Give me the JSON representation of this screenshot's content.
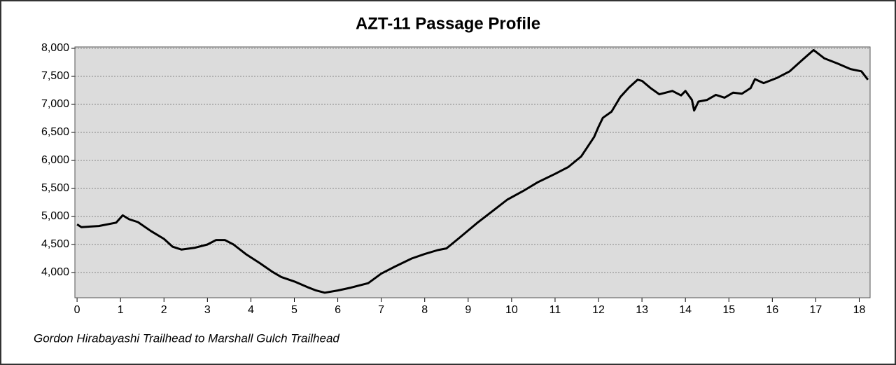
{
  "chart_data": {
    "type": "line",
    "title": "AZT-11 Passage Profile",
    "subtitle": "Gordon Hirabayashi Trailhead to Marshall Gulch Trailhead",
    "x": [
      0,
      0.1,
      0.5,
      0.9,
      1.05,
      1.2,
      1.4,
      1.7,
      2,
      2.2,
      2.4,
      2.7,
      3,
      3.2,
      3.4,
      3.6,
      3.9,
      4.2,
      4.5,
      4.7,
      5,
      5.3,
      5.5,
      5.7,
      6,
      6.3,
      6.7,
      7,
      7.3,
      7.7,
      8,
      8.3,
      8.5,
      8.8,
      9.2,
      9.6,
      9.9,
      10.3,
      10.6,
      11,
      11.3,
      11.6,
      11.9,
      12,
      12.1,
      12.3,
      12.5,
      12.7,
      12.9,
      13,
      13.2,
      13.4,
      13.7,
      13.9,
      14,
      14.15,
      14.2,
      14.3,
      14.5,
      14.7,
      14.9,
      15.1,
      15.3,
      15.5,
      15.6,
      15.8,
      16.1,
      16.4,
      16.7,
      16.95,
      17.2,
      17.5,
      17.8,
      18.05,
      18.2
    ],
    "series": [
      {
        "color": "#000000",
        "values": [
          4860,
          4810,
          4830,
          4890,
          5020,
          4950,
          4900,
          4740,
          4600,
          4460,
          4410,
          4440,
          4500,
          4580,
          4580,
          4500,
          4320,
          4170,
          4010,
          3920,
          3840,
          3740,
          3680,
          3640,
          3680,
          3730,
          3810,
          3980,
          4100,
          4250,
          4330,
          4400,
          4430,
          4620,
          4880,
          5120,
          5300,
          5470,
          5610,
          5760,
          5880,
          6070,
          6420,
          6600,
          6760,
          6870,
          7130,
          7300,
          7440,
          7420,
          7290,
          7180,
          7240,
          7160,
          7240,
          7080,
          6890,
          7050,
          7080,
          7170,
          7120,
          7210,
          7190,
          7290,
          7450,
          7380,
          7470,
          7590,
          7800,
          7970,
          7820,
          7730,
          7630,
          7590,
          7440
        ]
      }
    ],
    "xlim": [
      -0.05,
      18.25
    ],
    "ylim": [
      3550,
      8025
    ],
    "xticks": [
      0,
      1,
      2,
      3,
      4,
      5,
      6,
      7,
      8,
      9,
      10,
      11,
      12,
      13,
      14,
      15,
      16,
      17,
      18
    ],
    "yticks": [
      {
        "value": 4000,
        "label": "4,000"
      },
      {
        "value": 4500,
        "label": "4,500"
      },
      {
        "value": 5000,
        "label": "5,000"
      },
      {
        "value": 5500,
        "label": "5,500"
      },
      {
        "value": 6000,
        "label": "6,000"
      },
      {
        "value": 6500,
        "label": "6,500"
      },
      {
        "value": 7000,
        "label": "7,000"
      },
      {
        "value": 7500,
        "label": "7,500"
      },
      {
        "value": 8000,
        "label": "8,000"
      }
    ],
    "grid": true
  }
}
